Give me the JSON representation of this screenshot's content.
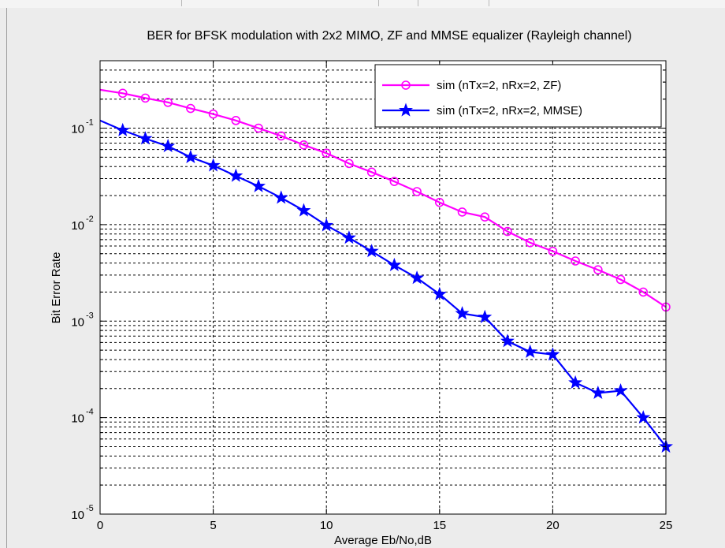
{
  "chart_data": {
    "type": "line",
    "title": "BER for BFSK modulation with 2x2 MIMO,  ZF and MMSE equalizer (Rayleigh channel)",
    "xlabel": "Average Eb/No,dB",
    "ylabel": "Bit Error Rate",
    "xlim": [
      0,
      25
    ],
    "ylim": [
      1e-05,
      0.5
    ],
    "yscale": "log",
    "grid": true,
    "legend_position": "top-right",
    "x_ticks": [
      "0",
      "5",
      "10",
      "15",
      "20",
      "25"
    ],
    "y_ticks": [
      {
        "base": "10",
        "exp": "-1"
      },
      {
        "base": "10",
        "exp": "-2"
      },
      {
        "base": "10",
        "exp": "-3"
      },
      {
        "base": "10",
        "exp": "-4"
      },
      {
        "base": "10",
        "exp": "-5"
      }
    ],
    "series": [
      {
        "name": "sim (nTx=2, nRx=2, ZF)",
        "color": "#ff00ff",
        "marker": "circle",
        "x": [
          0,
          1,
          2,
          3,
          4,
          5,
          6,
          7,
          8,
          9,
          10,
          11,
          12,
          13,
          14,
          15,
          16,
          17,
          18,
          19,
          20,
          21,
          22,
          23,
          24,
          25
        ],
        "y": [
          0.25,
          0.23,
          0.205,
          0.185,
          0.16,
          0.14,
          0.12,
          0.1,
          0.083,
          0.067,
          0.055,
          0.043,
          0.035,
          0.028,
          0.022,
          0.017,
          0.0135,
          0.012,
          0.0085,
          0.0065,
          0.0053,
          0.0042,
          0.0034,
          0.0027,
          0.002,
          0.0014
        ]
      },
      {
        "name": "sim (nTx=2, nRx=2, MMSE)",
        "color": "#0000ff",
        "marker": "star",
        "x": [
          0,
          1,
          2,
          3,
          4,
          5,
          6,
          7,
          8,
          9,
          10,
          11,
          12,
          13,
          14,
          15,
          16,
          17,
          18,
          19,
          20,
          21,
          22,
          23,
          24,
          25
        ],
        "y": [
          0.12,
          0.095,
          0.078,
          0.065,
          0.05,
          0.041,
          0.032,
          0.025,
          0.019,
          0.014,
          0.0098,
          0.0073,
          0.0053,
          0.0038,
          0.0028,
          0.0019,
          0.0012,
          0.0011,
          0.00062,
          0.00048,
          0.00045,
          0.00023,
          0.00018,
          0.00019,
          0.0001,
          5e-05
        ]
      }
    ]
  }
}
